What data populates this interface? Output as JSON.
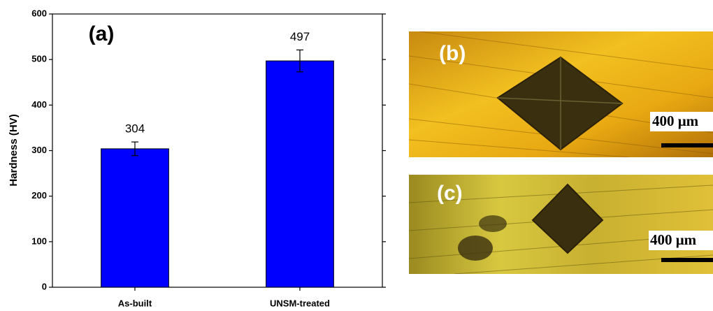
{
  "chart_data": {
    "type": "bar",
    "y_label": "Hardness (HV)",
    "annotation": "(a)",
    "categories": [
      "As-built",
      "UNSM-treated"
    ],
    "values": [
      304,
      497
    ],
    "errors": [
      15,
      24
    ],
    "color": "#0000ff",
    "ylim": [
      0,
      600
    ],
    "yticks": [
      0,
      100,
      200,
      300,
      400,
      500,
      600
    ],
    "grid": false
  },
  "panels": [
    {
      "label": "(b)",
      "scale_bar": "400 μm"
    },
    {
      "label": "(c)",
      "scale_bar": "400 μm"
    }
  ]
}
